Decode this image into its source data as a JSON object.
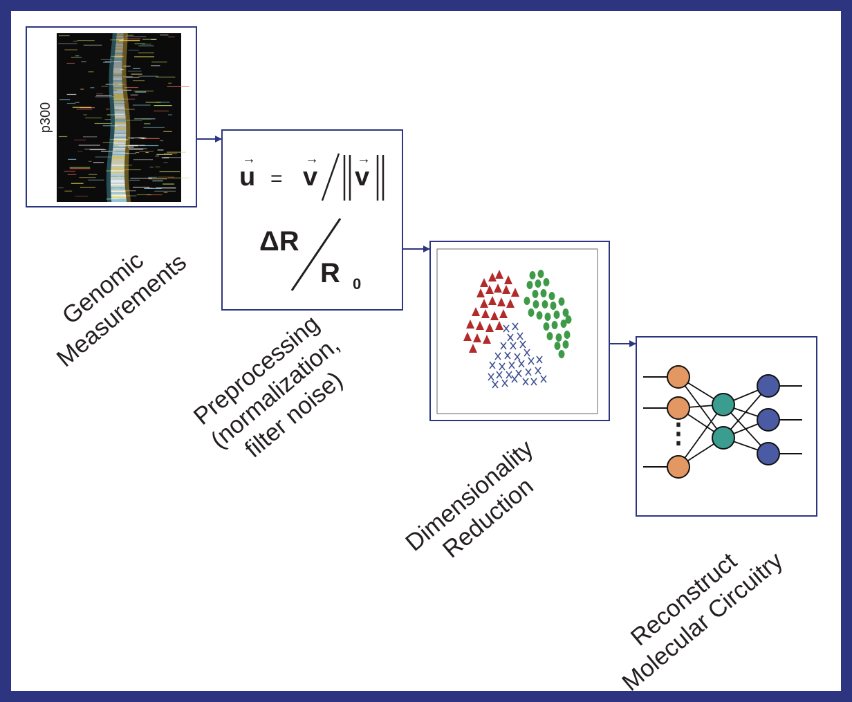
{
  "colors": {
    "frame": "#2e3580",
    "box_border": "#2e3580",
    "arrow": "#2e3580",
    "text": "#231f20",
    "cluster_a": "#b32a2a",
    "cluster_b": "#3f9a48",
    "cluster_c": "#3d4f8f",
    "node_input": "#e39763",
    "node_hidden": "#3a9d8f",
    "node_output": "#4a5ba3"
  },
  "stages": {
    "genomic": {
      "side_label": "p300",
      "label_lines": [
        "Genomic",
        "Measurements"
      ]
    },
    "preprocessing": {
      "label_lines": [
        "Preprocessing",
        "(normalization,",
        "filter noise)"
      ],
      "formula1": {
        "u": "u",
        "eq": "=",
        "v": "v",
        "v2": "v"
      },
      "formula2": {
        "num": "ΔR",
        "den": "R",
        "sub": "0"
      }
    },
    "dimreduce": {
      "label_lines": [
        "Dimensionality",
        "Reduction"
      ],
      "clusters": {
        "a": "triangle",
        "b": "ellipse",
        "c": "cross"
      }
    },
    "circuitry": {
      "label_lines": [
        "Reconstruct",
        "Molecular Circuitry"
      ],
      "ellipsis": "⋮"
    }
  }
}
